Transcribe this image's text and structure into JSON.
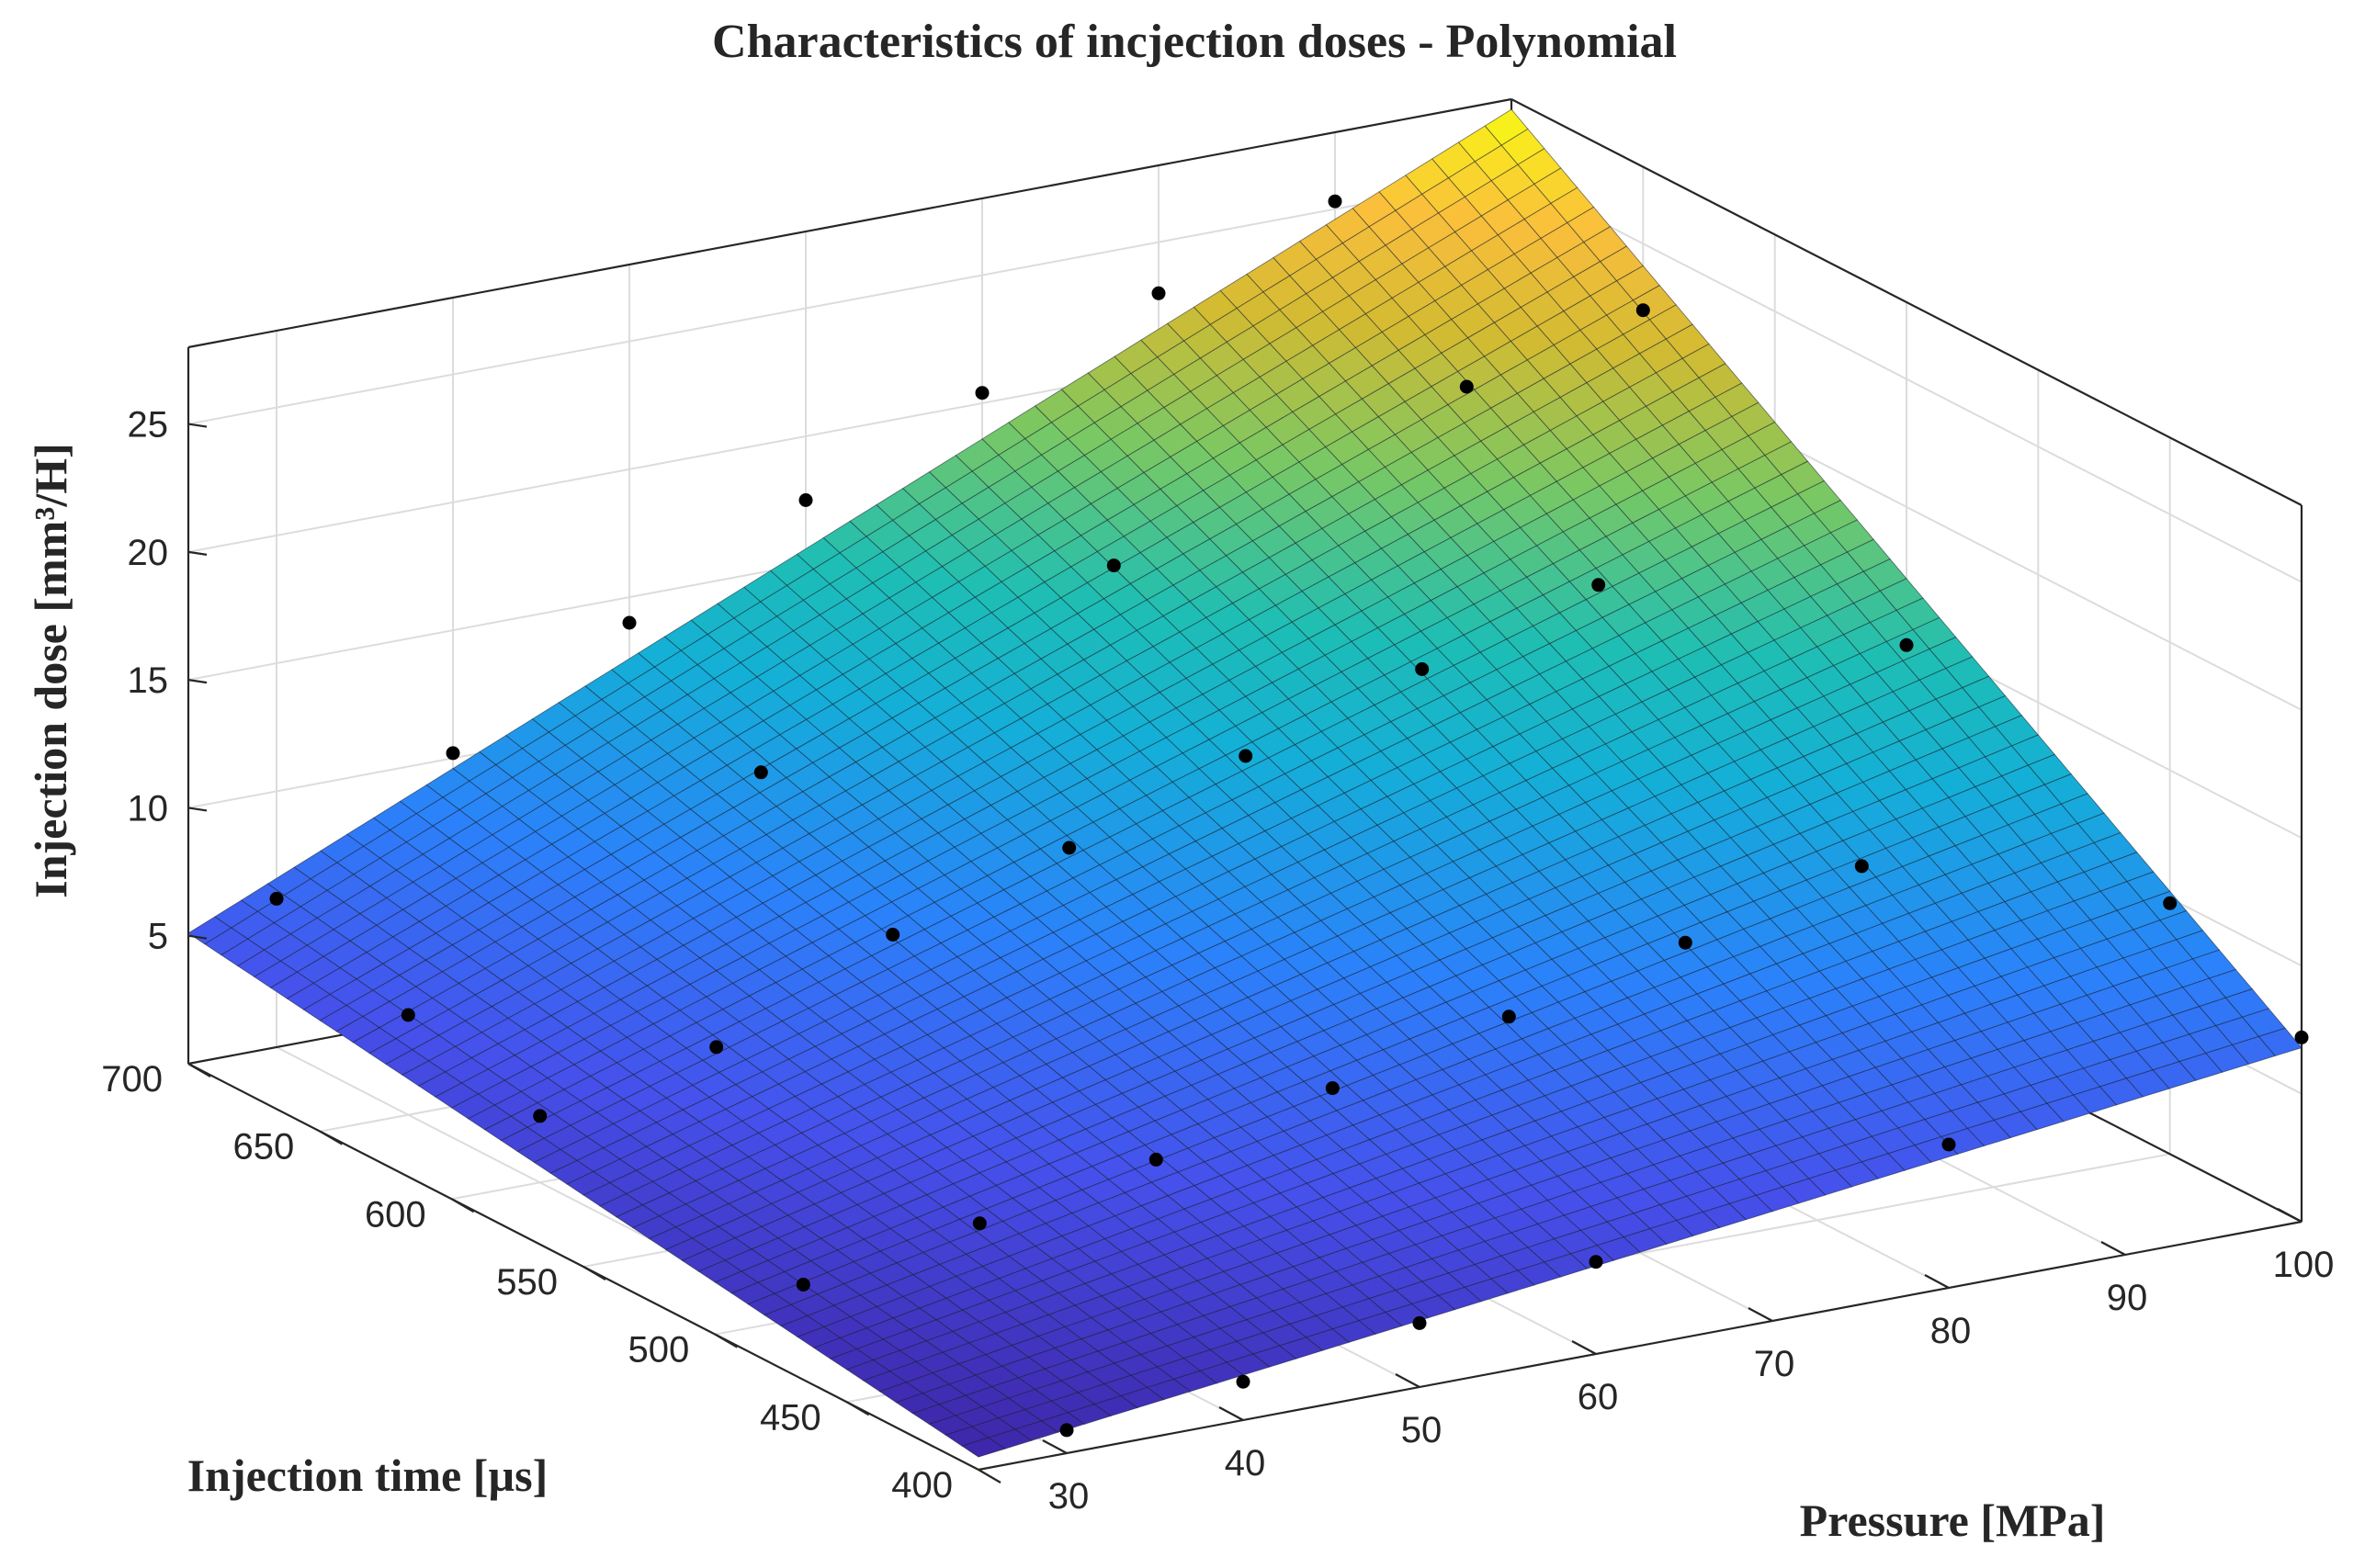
{
  "chart_data": {
    "type": "surface",
    "title": "Characteristics of incjection doses - Polynomial",
    "xlabel": "Pressure [MPa]",
    "ylabel": "Injection time [µs]",
    "zlabel": "Injection dose [mm³/H]",
    "xlim": [
      25,
      100
    ],
    "ylim": [
      400,
      700
    ],
    "zlim": [
      0,
      28
    ],
    "xticks": [
      30,
      40,
      50,
      60,
      70,
      80,
      90,
      100
    ],
    "yticks": [
      400,
      450,
      500,
      550,
      600,
      650,
      700
    ],
    "zticks": [
      5,
      10,
      15,
      20,
      25
    ],
    "grid": true,
    "colormap": "parula",
    "surface_corners": [
      {
        "pressure": 25,
        "time": 400,
        "dose": 0.5
      },
      {
        "pressure": 100,
        "time": 400,
        "dose": 6.8
      },
      {
        "pressure": 25,
        "time": 700,
        "dose": 5.1
      },
      {
        "pressure": 100,
        "time": 700,
        "dose": 27.6
      }
    ],
    "measured_points": [
      {
        "pressure": 30,
        "time": 400,
        "dose": 0.9
      },
      {
        "pressure": 40,
        "time": 400,
        "dose": 1.5
      },
      {
        "pressure": 50,
        "time": 400,
        "dose": 2.5
      },
      {
        "pressure": 60,
        "time": 400,
        "dose": 3.6
      },
      {
        "pressure": 80,
        "time": 400,
        "dose": 5.6
      },
      {
        "pressure": 100,
        "time": 400,
        "dose": 7.2
      },
      {
        "pressure": 30,
        "time": 500,
        "dose": 1.3
      },
      {
        "pressure": 40,
        "time": 500,
        "dose": 2.4
      },
      {
        "pressure": 50,
        "time": 500,
        "dose": 3.6
      },
      {
        "pressure": 60,
        "time": 500,
        "dose": 5.1
      },
      {
        "pressure": 70,
        "time": 500,
        "dose": 6.6
      },
      {
        "pressure": 80,
        "time": 500,
        "dose": 8.2
      },
      {
        "pressure": 90,
        "time": 500,
        "dose": 9.9
      },
      {
        "pressure": 30,
        "time": 600,
        "dose": 2.6
      },
      {
        "pressure": 40,
        "time": 600,
        "dose": 4.0
      },
      {
        "pressure": 50,
        "time": 600,
        "dose": 7.1
      },
      {
        "pressure": 60,
        "time": 600,
        "dose": 9.2
      },
      {
        "pressure": 70,
        "time": 600,
        "dose": 11.5
      },
      {
        "pressure": 80,
        "time": 600,
        "dose": 13.6
      },
      {
        "pressure": 90,
        "time": 600,
        "dose": 15.6
      },
      {
        "pressure": 30,
        "time": 700,
        "dose": 5.8
      },
      {
        "pressure": 40,
        "time": 700,
        "dose": 10.2
      },
      {
        "pressure": 50,
        "time": 700,
        "dose": 14.0
      },
      {
        "pressure": 60,
        "time": 700,
        "dose": 17.5
      },
      {
        "pressure": 70,
        "time": 700,
        "dose": 20.4
      },
      {
        "pressure": 80,
        "time": 700,
        "dose": 23.0
      },
      {
        "pressure": 90,
        "time": 700,
        "dose": 25.3
      },
      {
        "pressure": 30,
        "time": 650,
        "dose": 3.9
      },
      {
        "pressure": 50,
        "time": 650,
        "dose": 10.8
      },
      {
        "pressure": 70,
        "time": 650,
        "dose": 16.3
      },
      {
        "pressure": 90,
        "time": 650,
        "dose": 20.7
      },
      {
        "pressure": 100,
        "time": 650,
        "dose": 22.4
      },
      {
        "pressure": 100,
        "time": 550,
        "dose": 14.6
      },
      {
        "pressure": 100,
        "time": 450,
        "dose": 9.8
      }
    ]
  }
}
